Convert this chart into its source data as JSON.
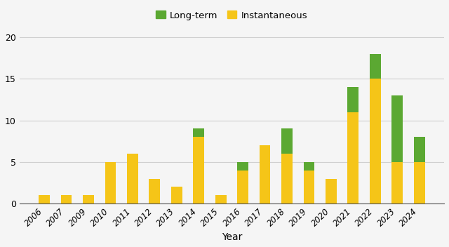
{
  "years": [
    "2006",
    "2007",
    "2009",
    "2010",
    "2011",
    "2012",
    "2013",
    "2014",
    "2015",
    "2016",
    "2017",
    "2018",
    "2019",
    "2020",
    "2021",
    "2022",
    "2023",
    "2024"
  ],
  "instantaneous": [
    1,
    1,
    1,
    5,
    6,
    3,
    2,
    8,
    1,
    4,
    7,
    6,
    4,
    3,
    11,
    15,
    5,
    5
  ],
  "longterm": [
    0,
    0,
    0,
    0,
    0,
    0,
    0,
    1,
    0,
    1,
    0,
    3,
    1,
    0,
    3,
    3,
    8,
    3
  ],
  "bar_color_instantaneous": "#F5C518",
  "bar_color_longterm": "#5BA832",
  "ylim": [
    0,
    21
  ],
  "yticks": [
    0,
    5,
    10,
    15,
    20
  ],
  "xlabel": "Year",
  "ylabel": "",
  "title": "",
  "legend_longterm": "Long-term",
  "legend_instantaneous": "Instantaneous",
  "bar_width": 0.5,
  "background_color": "#f5f5f5",
  "plot_background": "#f5f5f5",
  "grid_color": "#d0d0d0",
  "spine_color": "#555555"
}
